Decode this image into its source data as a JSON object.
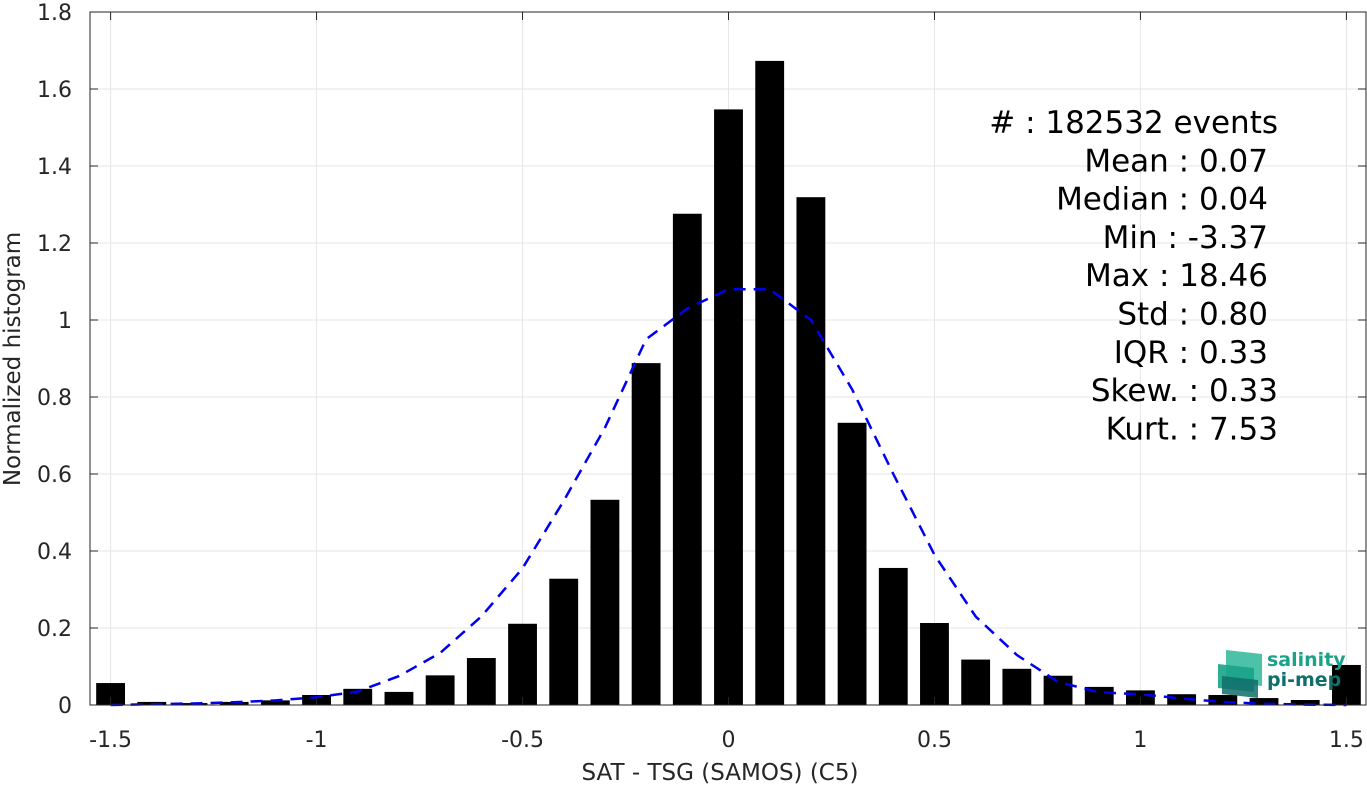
{
  "chart_data": {
    "type": "bar",
    "xlabel": "SAT - TSG (SAMOS) (C5)",
    "ylabel": "Normalized histogram",
    "xlim": [
      -1.55,
      1.55
    ],
    "ylim": [
      0,
      1.8
    ],
    "grid": true,
    "x_ticks": [
      -1.5,
      -1,
      -0.5,
      0,
      0.5,
      1,
      1.5
    ],
    "x_tick_labels": [
      "-1.5",
      "-1",
      "-0.5",
      "0",
      "0.5",
      "1",
      "1.5"
    ],
    "y_ticks": [
      0,
      0.2,
      0.4,
      0.6,
      0.8,
      1,
      1.2,
      1.4,
      1.6,
      1.8
    ],
    "y_tick_labels": [
      "0",
      "0.2",
      "0.4",
      "0.6",
      "0.8",
      "1",
      "1.2",
      "1.4",
      "1.6",
      "1.8"
    ],
    "bar_color": "#000000",
    "bin_width": 0.1,
    "bins": [
      {
        "x": -1.5,
        "value": 0.057
      },
      {
        "x": -1.4,
        "value": 0.008
      },
      {
        "x": -1.3,
        "value": 0.005
      },
      {
        "x": -1.2,
        "value": 0.008
      },
      {
        "x": -1.1,
        "value": 0.012
      },
      {
        "x": -1.0,
        "value": 0.026
      },
      {
        "x": -0.9,
        "value": 0.042
      },
      {
        "x": -0.8,
        "value": 0.034
      },
      {
        "x": -0.7,
        "value": 0.077
      },
      {
        "x": -0.6,
        "value": 0.122
      },
      {
        "x": -0.5,
        "value": 0.211
      },
      {
        "x": -0.4,
        "value": 0.328
      },
      {
        "x": -0.3,
        "value": 0.533
      },
      {
        "x": -0.2,
        "value": 0.888
      },
      {
        "x": -0.1,
        "value": 1.276
      },
      {
        "x": 0.0,
        "value": 1.547
      },
      {
        "x": 0.1,
        "value": 1.673
      },
      {
        "x": 0.2,
        "value": 1.319
      },
      {
        "x": 0.3,
        "value": 0.733
      },
      {
        "x": 0.4,
        "value": 0.356
      },
      {
        "x": 0.5,
        "value": 0.213
      },
      {
        "x": 0.6,
        "value": 0.118
      },
      {
        "x": 0.7,
        "value": 0.094
      },
      {
        "x": 0.8,
        "value": 0.076
      },
      {
        "x": 0.9,
        "value": 0.047
      },
      {
        "x": 1.0,
        "value": 0.038
      },
      {
        "x": 1.1,
        "value": 0.028
      },
      {
        "x": 1.2,
        "value": 0.026
      },
      {
        "x": 1.3,
        "value": 0.018
      },
      {
        "x": 1.4,
        "value": 0.013
      },
      {
        "x": 1.5,
        "value": 0.104
      }
    ],
    "fit_curve": {
      "type": "gaussian",
      "color": "#0000ee",
      "style": "dashed",
      "x": [
        -1.5,
        -1.4,
        -1.3,
        -1.2,
        -1.1,
        -1.0,
        -0.9,
        -0.8,
        -0.7,
        -0.6,
        -0.5,
        -0.4,
        -0.3,
        -0.2,
        -0.1,
        0.0,
        0.05,
        0.1,
        0.2,
        0.3,
        0.4,
        0.5,
        0.6,
        0.7,
        0.8,
        0.9,
        1.0,
        1.1,
        1.2,
        1.3,
        1.4,
        1.5
      ],
      "y": [
        0.0,
        0.002,
        0.004,
        0.007,
        0.012,
        0.02,
        0.035,
        0.075,
        0.135,
        0.23,
        0.355,
        0.53,
        0.72,
        0.95,
        1.03,
        1.08,
        1.08,
        1.08,
        1.0,
        0.82,
        0.6,
        0.39,
        0.23,
        0.13,
        0.06,
        0.033,
        0.028,
        0.017,
        0.008,
        0.003,
        0.001,
        0.0
      ]
    },
    "stats": [
      {
        "label": "#  : 182532 events"
      },
      {
        "label": "Mean : 0.07"
      },
      {
        "label": "Median : 0.04"
      },
      {
        "label": "Min : -3.37"
      },
      {
        "label": "Max : 18.46"
      },
      {
        "label": "Std : 0.80"
      },
      {
        "label": "IQR : 0.33"
      },
      {
        "label": "Skew. : 0.33"
      },
      {
        "label": "Kurt. : 7.53"
      }
    ]
  },
  "logo": {
    "line1": "salinity",
    "line2": "pi-mep",
    "colors": [
      "#1aa38a",
      "#0f6f6a",
      "#4cc3a8"
    ]
  }
}
